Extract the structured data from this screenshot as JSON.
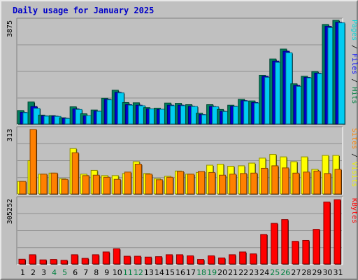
{
  "title": "Daily usage for January 2025",
  "chart_data": [
    {
      "type": "bar",
      "panel": "hits-files-pages",
      "categories": [
        "1",
        "2",
        "3",
        "4",
        "5",
        "6",
        "7",
        "8",
        "9",
        "10",
        "11",
        "12",
        "13",
        "14",
        "15",
        "16",
        "17",
        "18",
        "19",
        "20",
        "21",
        "22",
        "23",
        "24",
        "25",
        "26",
        "27",
        "28",
        "29",
        "30",
        "31"
      ],
      "ylim": [
        0,
        3875
      ],
      "max_label": "3875",
      "axis_label": [
        {
          "text": "Pages",
          "color": "#00d8d8"
        },
        {
          "text": " / ",
          "color": "#000000"
        },
        {
          "text": "Files",
          "color": "#0000ff"
        },
        {
          "text": " / ",
          "color": "#000000"
        },
        {
          "text": "Hits",
          "color": "#008040"
        }
      ],
      "series": [
        {
          "name": "Hits",
          "color": "#00805c",
          "values": [
            500,
            820,
            330,
            310,
            230,
            640,
            380,
            520,
            960,
            1260,
            800,
            790,
            610,
            590,
            780,
            770,
            720,
            400,
            720,
            540,
            700,
            920,
            860,
            1820,
            2430,
            2800,
            1500,
            1780,
            1960,
            3720,
            3875
          ]
        },
        {
          "name": "Files",
          "color": "#0000d0",
          "values": [
            430,
            650,
            300,
            290,
            210,
            560,
            300,
            480,
            920,
            1180,
            720,
            700,
            560,
            540,
            700,
            700,
            660,
            350,
            650,
            470,
            660,
            870,
            800,
            1780,
            2350,
            2720,
            1440,
            1740,
            1900,
            3650,
            3800
          ]
        },
        {
          "name": "Pages",
          "color": "#00ccf2",
          "values": [
            420,
            580,
            290,
            280,
            200,
            540,
            310,
            470,
            900,
            1160,
            700,
            680,
            560,
            550,
            680,
            680,
            650,
            340,
            640,
            460,
            650,
            850,
            780,
            1740,
            2300,
            2660,
            1400,
            1720,
            1880,
            3600,
            3780
          ]
        }
      ]
    },
    {
      "type": "bar",
      "panel": "visits-sites",
      "categories": [
        "1",
        "2",
        "3",
        "4",
        "5",
        "6",
        "7",
        "8",
        "9",
        "10",
        "11",
        "12",
        "13",
        "14",
        "15",
        "16",
        "17",
        "18",
        "19",
        "20",
        "21",
        "22",
        "23",
        "24",
        "25",
        "26",
        "27",
        "28",
        "29",
        "30",
        "31"
      ],
      "ylim": [
        0,
        313
      ],
      "max_label": "313",
      "axis_label": [
        {
          "text": "Sites",
          "color": "#ff8000"
        },
        {
          "text": " / ",
          "color": "#000000"
        },
        {
          "text": "Visits",
          "color": "#f0f000"
        }
      ],
      "series": [
        {
          "name": "Visits",
          "color": "#ffff00",
          "values": [
            60,
            160,
            95,
            100,
            73,
            218,
            95,
            113,
            88,
            88,
            98,
            155,
            98,
            73,
            85,
            110,
            95,
            103,
            138,
            143,
            133,
            135,
            148,
            172,
            190,
            178,
            155,
            178,
            118,
            185,
            185
          ]
        },
        {
          "name": "Sites",
          "color": "#ff8000",
          "values": [
            60,
            310,
            95,
            100,
            70,
            198,
            88,
            90,
            80,
            70,
            105,
            143,
            95,
            68,
            80,
            108,
            95,
            108,
            103,
            90,
            95,
            98,
            100,
            123,
            135,
            125,
            100,
            105,
            110,
            98,
            118
          ]
        }
      ]
    },
    {
      "type": "bar",
      "panel": "kbytes",
      "categories": [
        "1",
        "2",
        "3",
        "4",
        "5",
        "6",
        "7",
        "8",
        "9",
        "10",
        "11",
        "12",
        "13",
        "14",
        "15",
        "16",
        "17",
        "18",
        "19",
        "20",
        "21",
        "22",
        "23",
        "24",
        "25",
        "26",
        "27",
        "28",
        "29",
        "30",
        "31"
      ],
      "ylim": [
        0,
        305252
      ],
      "max_label": "305252",
      "axis_label": [
        {
          "text": "KBytes",
          "color": "#ff0000"
        }
      ],
      "series": [
        {
          "name": "KBytes",
          "color": "#ff0000",
          "values": [
            22000,
            43000,
            19000,
            21000,
            17000,
            43000,
            26000,
            43000,
            56000,
            71000,
            36000,
            36000,
            32000,
            34000,
            43000,
            43000,
            38000,
            21000,
            38000,
            28000,
            43000,
            56000,
            47000,
            138000,
            190000,
            208000,
            106000,
            110000,
            162000,
            290000,
            301000
          ]
        }
      ]
    }
  ],
  "weekend_days": [
    "4",
    "5",
    "11",
    "12",
    "18",
    "19",
    "25",
    "26"
  ],
  "day_label_color": "#000000",
  "weekend_label_color": "#008040"
}
